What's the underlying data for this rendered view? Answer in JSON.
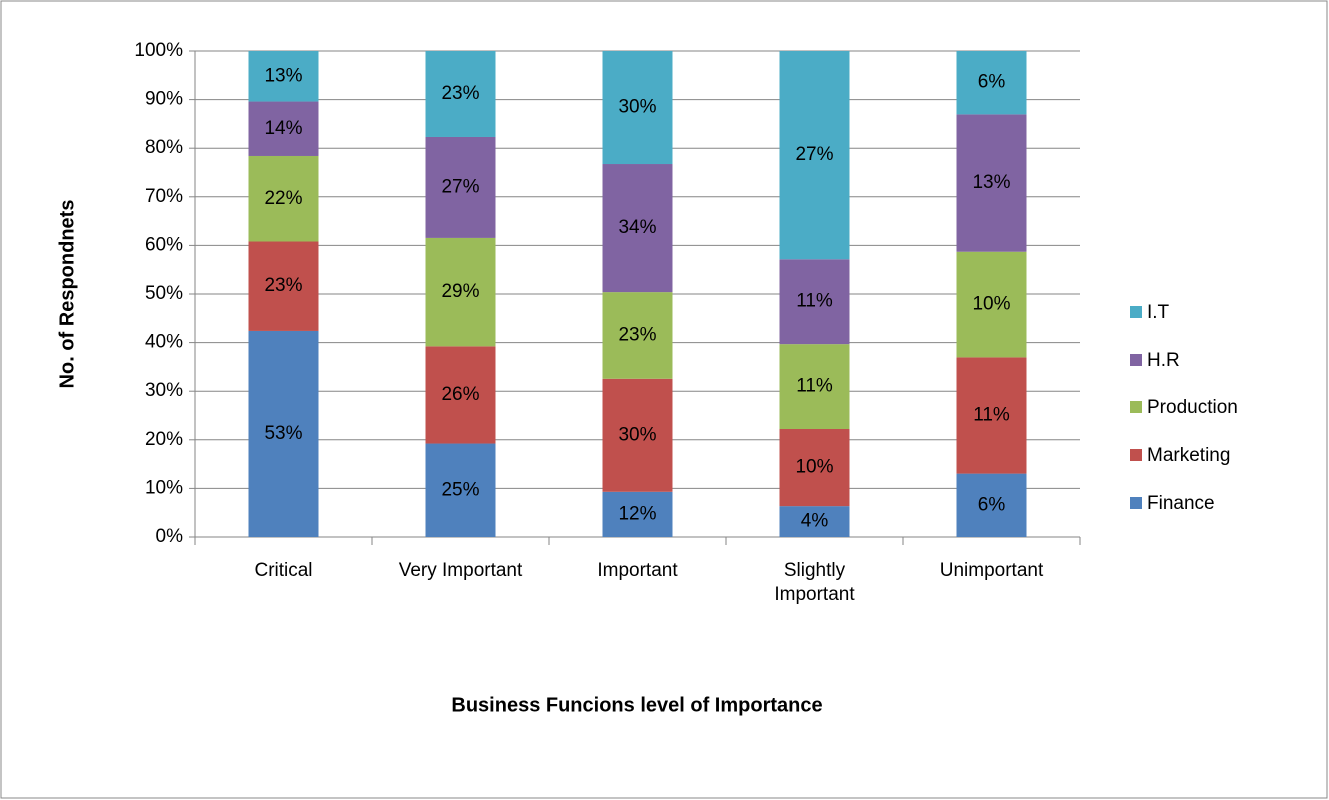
{
  "chart_data": {
    "type": "bar",
    "stack": "percent",
    "x_label": "Business Funcions level of Importance",
    "y_label": "No. of Respondnets",
    "categories": [
      "Critical",
      "Very Important",
      "Important",
      "Slightly Important",
      "Unimportant"
    ],
    "series": [
      {
        "name": "Finance",
        "color": "#4f81bd",
        "values": [
          53,
          25,
          12,
          4,
          6
        ],
        "value_labels": [
          "53%",
          "25%",
          "12%",
          "4%",
          "6%"
        ]
      },
      {
        "name": "Marketing",
        "color": "#c0504d",
        "values": [
          23,
          26,
          30,
          10,
          11
        ],
        "value_labels": [
          "23%",
          "26%",
          "30%",
          "10%",
          "11%"
        ]
      },
      {
        "name": "Production",
        "color": "#9bbb59",
        "values": [
          22,
          29,
          23,
          11,
          10
        ],
        "value_labels": [
          "22%",
          "29%",
          "23%",
          "11%",
          "10%"
        ]
      },
      {
        "name": "H.R",
        "color": "#8064a2",
        "values": [
          14,
          27,
          34,
          11,
          13
        ],
        "value_labels": [
          "14%",
          "27%",
          "34%",
          "11%",
          "13%"
        ]
      },
      {
        "name": "I.T",
        "color": "#4bacc6",
        "values": [
          13,
          23,
          30,
          27,
          6
        ],
        "value_labels": [
          "13%",
          "23%",
          "30%",
          "27%",
          "6%"
        ]
      }
    ],
    "ylim": [
      0,
      100
    ],
    "yticks": [
      {
        "value": 0,
        "label": "0%"
      },
      {
        "value": 10,
        "label": "10%"
      },
      {
        "value": 20,
        "label": "20%"
      },
      {
        "value": 30,
        "label": "30%"
      },
      {
        "value": 40,
        "label": "40%"
      },
      {
        "value": 50,
        "label": "50%"
      },
      {
        "value": 60,
        "label": "60%"
      },
      {
        "value": 70,
        "label": "70%"
      },
      {
        "value": 80,
        "label": "80%"
      },
      {
        "value": 90,
        "label": "90%"
      },
      {
        "value": 100,
        "label": "100%"
      }
    ],
    "grid": true,
    "legend": "right"
  }
}
